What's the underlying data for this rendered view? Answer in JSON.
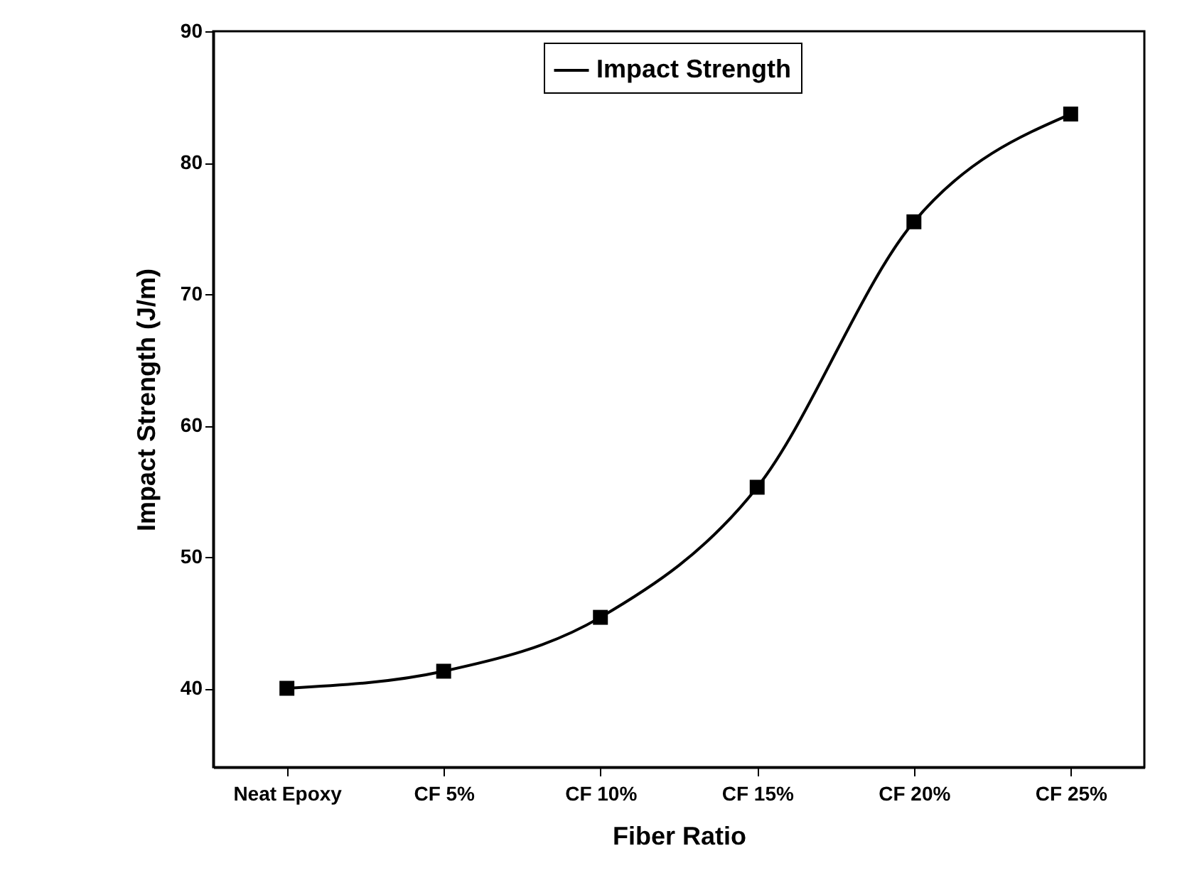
{
  "chart_data": {
    "type": "line",
    "xlabel": "Fiber Ratio",
    "ylabel": "Impact Strength (J/m)",
    "categories": [
      "Neat Epoxy",
      "CF 5%",
      "CF 10%",
      "CF 15%",
      "CF 20%",
      "CF 25%"
    ],
    "series": [
      {
        "name": "Impact Strength",
        "color": "#000000",
        "values": [
          40,
          41.3,
          45.4,
          55.3,
          75.5,
          83.7
        ]
      }
    ],
    "ylim": [
      34,
      90
    ],
    "yticks": [
      40,
      50,
      60,
      70,
      80,
      90
    ],
    "legend": "top",
    "marker": "square"
  }
}
